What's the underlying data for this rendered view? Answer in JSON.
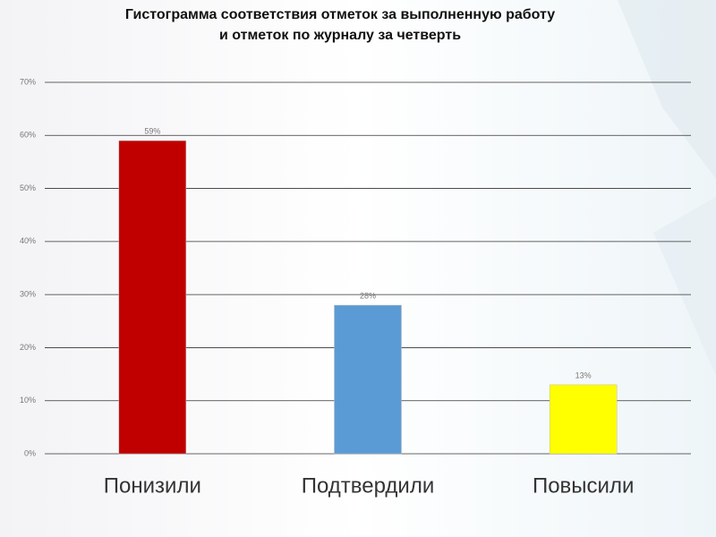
{
  "chart_data": {
    "type": "bar",
    "title": [
      "Гистограмма соответствия отметок за выполненную работу",
      "и отметок по журналу за четверть"
    ],
    "categories": [
      "Понизили",
      "Подтвердили",
      "Повысили"
    ],
    "values": [
      59,
      28,
      13
    ],
    "value_labels": [
      "59%",
      "28%",
      "13%"
    ],
    "colors": [
      "#c00000",
      "#5b9bd5",
      "#ffff00"
    ],
    "ylim": [
      0,
      70
    ],
    "yticks": [
      {
        "value": 0,
        "label": "0%"
      },
      {
        "value": 10,
        "label": "10%"
      },
      {
        "value": 20,
        "label": "20%"
      },
      {
        "value": 30,
        "label": "30%"
      },
      {
        "value": 40,
        "label": "40%"
      },
      {
        "value": 50,
        "label": "50%"
      },
      {
        "value": 60,
        "label": "60%"
      },
      {
        "value": 70,
        "label": "70%"
      }
    ],
    "grid": true
  }
}
